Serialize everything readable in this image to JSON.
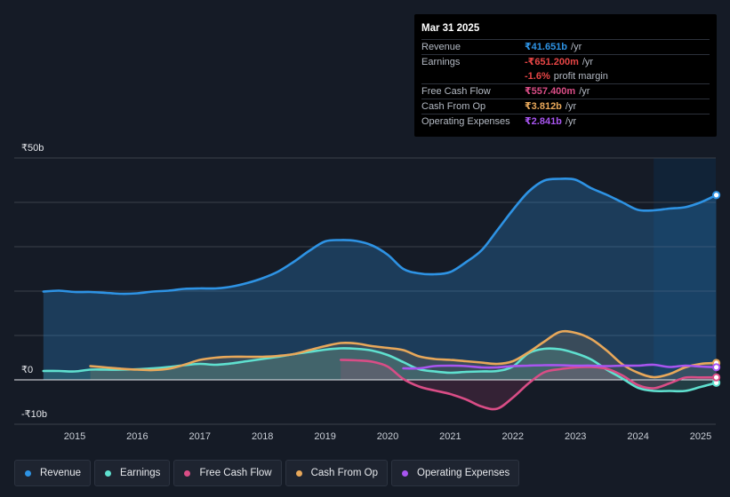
{
  "tooltip": {
    "date": "Mar 31 2025",
    "rows": [
      {
        "label": "Revenue",
        "value": "₹41.651b",
        "unit": "/yr",
        "color": "#2e93e4"
      },
      {
        "label": "Earnings",
        "value": "-₹651.200m",
        "unit": "/yr",
        "color": "#e64545"
      },
      {
        "label": "",
        "value": "-1.6%",
        "unit": "profit margin",
        "color": "#e64545"
      },
      {
        "label": "Free Cash Flow",
        "value": "₹557.400m",
        "unit": "/yr",
        "color": "#d94d86"
      },
      {
        "label": "Cash From Op",
        "value": "₹3.812b",
        "unit": "/yr",
        "color": "#e8a85a"
      },
      {
        "label": "Operating Expenses",
        "value": "₹2.841b",
        "unit": "/yr",
        "color": "#a855f0"
      }
    ]
  },
  "legend": [
    {
      "label": "Revenue",
      "color": "#2e93e4"
    },
    {
      "label": "Earnings",
      "color": "#5fe0cf"
    },
    {
      "label": "Free Cash Flow",
      "color": "#d94d86"
    },
    {
      "label": "Cash From Op",
      "color": "#e8a85a"
    },
    {
      "label": "Operating Expenses",
      "color": "#a855f0"
    }
  ],
  "chart_data": {
    "type": "line",
    "title": "",
    "xlabel": "",
    "ylabel": "",
    "y_tick_labels": [
      "₹50b",
      "₹0",
      "-₹10b"
    ],
    "x_tick_labels": [
      "2015",
      "2016",
      "2017",
      "2018",
      "2019",
      "2020",
      "2021",
      "2022",
      "2023",
      "2024",
      "2025"
    ],
    "ylim": [
      -10,
      50
    ],
    "xlim": [
      2014.5,
      2025.25
    ],
    "forecast_start": 2024.25,
    "series": [
      {
        "name": "Revenue",
        "color": "#2e93e4",
        "fill": true,
        "x": [
          2014.5,
          2014.75,
          2015.0,
          2015.25,
          2015.5,
          2015.75,
          2016.0,
          2016.25,
          2016.5,
          2016.75,
          2017.0,
          2017.25,
          2017.5,
          2017.75,
          2018.0,
          2018.25,
          2018.5,
          2018.75,
          2019.0,
          2019.25,
          2019.5,
          2019.75,
          2020.0,
          2020.25,
          2020.5,
          2020.75,
          2021.0,
          2021.25,
          2021.5,
          2021.75,
          2022.0,
          2022.25,
          2022.5,
          2022.75,
          2023.0,
          2023.25,
          2023.5,
          2023.75,
          2024.0,
          2024.25,
          2024.5,
          2024.75,
          2025.0,
          2025.25
        ],
        "values": [
          19.9,
          20.1,
          19.8,
          19.8,
          19.6,
          19.4,
          19.5,
          19.9,
          20.1,
          20.5,
          20.6,
          20.6,
          21.0,
          21.8,
          22.9,
          24.4,
          26.6,
          29.1,
          31.2,
          31.5,
          31.3,
          30.3,
          28.2,
          25.0,
          24.0,
          23.8,
          24.3,
          26.5,
          29.2,
          33.7,
          38.3,
          42.4,
          44.9,
          45.3,
          45.1,
          43.2,
          41.7,
          40.0,
          38.3,
          38.2,
          38.6,
          38.9,
          40.0,
          41.65
        ]
      },
      {
        "name": "Earnings",
        "color": "#5fe0cf",
        "fill": true,
        "x": [
          2014.5,
          2014.75,
          2015.0,
          2015.25,
          2015.5,
          2015.75,
          2016.0,
          2016.25,
          2016.5,
          2016.75,
          2017.0,
          2017.25,
          2017.5,
          2017.75,
          2018.0,
          2018.25,
          2018.5,
          2018.75,
          2019.0,
          2019.25,
          2019.5,
          2019.75,
          2020.0,
          2020.25,
          2020.5,
          2020.75,
          2021.0,
          2021.25,
          2021.5,
          2021.75,
          2022.0,
          2022.25,
          2022.5,
          2022.75,
          2023.0,
          2023.25,
          2023.5,
          2023.75,
          2024.0,
          2024.25,
          2024.5,
          2024.75,
          2025.0,
          2025.25
        ],
        "values": [
          2.0,
          2.0,
          1.9,
          2.3,
          2.3,
          2.3,
          2.4,
          2.6,
          2.9,
          3.3,
          3.6,
          3.4,
          3.7,
          4.2,
          4.7,
          5.2,
          5.8,
          6.3,
          6.8,
          7.1,
          7.0,
          6.6,
          5.6,
          4.0,
          2.4,
          1.9,
          1.6,
          1.8,
          1.9,
          2.0,
          3.0,
          6.0,
          7.0,
          6.9,
          6.0,
          4.6,
          2.3,
          0.3,
          -1.8,
          -2.5,
          -2.5,
          -2.5,
          -1.6,
          -0.65
        ]
      },
      {
        "name": "Free Cash Flow",
        "color": "#d94d86",
        "fill": true,
        "x": [
          2019.25,
          2019.5,
          2019.75,
          2020.0,
          2020.25,
          2020.5,
          2020.75,
          2021.0,
          2021.25,
          2021.5,
          2021.75,
          2022.0,
          2022.25,
          2022.5,
          2022.75,
          2023.0,
          2023.25,
          2023.5,
          2023.75,
          2024.0,
          2024.25,
          2024.5,
          2024.75,
          2025.0,
          2025.25
        ],
        "values": [
          4.5,
          4.4,
          4.1,
          3.0,
          0.2,
          -1.5,
          -2.4,
          -3.2,
          -4.4,
          -6.0,
          -6.5,
          -4.0,
          -0.8,
          1.7,
          2.4,
          2.8,
          2.9,
          2.5,
          1.0,
          -1.2,
          -1.9,
          -0.8,
          0.5,
          0.55,
          0.56
        ]
      },
      {
        "name": "Cash From Op",
        "color": "#e8a85a",
        "fill": true,
        "x": [
          2015.25,
          2015.5,
          2015.75,
          2016.0,
          2016.25,
          2016.5,
          2016.75,
          2017.0,
          2017.25,
          2017.5,
          2017.75,
          2018.0,
          2018.25,
          2018.5,
          2018.75,
          2019.0,
          2019.25,
          2019.5,
          2019.75,
          2020.0,
          2020.25,
          2020.5,
          2020.75,
          2021.0,
          2021.25,
          2021.5,
          2021.75,
          2022.0,
          2022.25,
          2022.5,
          2022.75,
          2023.0,
          2023.25,
          2023.5,
          2023.75,
          2024.0,
          2024.25,
          2024.5,
          2024.75,
          2025.0,
          2025.25
        ],
        "values": [
          3.1,
          2.8,
          2.5,
          2.3,
          2.2,
          2.5,
          3.4,
          4.5,
          5.0,
          5.2,
          5.2,
          5.2,
          5.4,
          5.8,
          6.7,
          7.6,
          8.3,
          8.2,
          7.6,
          7.2,
          6.7,
          5.3,
          4.7,
          4.5,
          4.2,
          3.9,
          3.6,
          4.2,
          6.2,
          8.6,
          10.8,
          10.6,
          9.2,
          6.6,
          3.5,
          1.6,
          0.6,
          1.3,
          2.8,
          3.6,
          3.81
        ]
      },
      {
        "name": "Operating Expenses",
        "color": "#a855f0",
        "fill": false,
        "x": [
          2020.25,
          2020.5,
          2020.75,
          2021.0,
          2021.25,
          2021.5,
          2021.75,
          2022.0,
          2022.25,
          2022.5,
          2022.75,
          2023.0,
          2023.25,
          2023.5,
          2023.75,
          2024.0,
          2024.25,
          2024.5,
          2024.75,
          2025.0,
          2025.25
        ],
        "values": [
          2.6,
          2.6,
          3.1,
          3.2,
          3.1,
          2.8,
          2.8,
          3.1,
          3.2,
          3.3,
          3.3,
          3.2,
          3.2,
          3.1,
          3.2,
          3.2,
          3.4,
          2.9,
          3.2,
          3.0,
          2.84
        ]
      }
    ]
  }
}
